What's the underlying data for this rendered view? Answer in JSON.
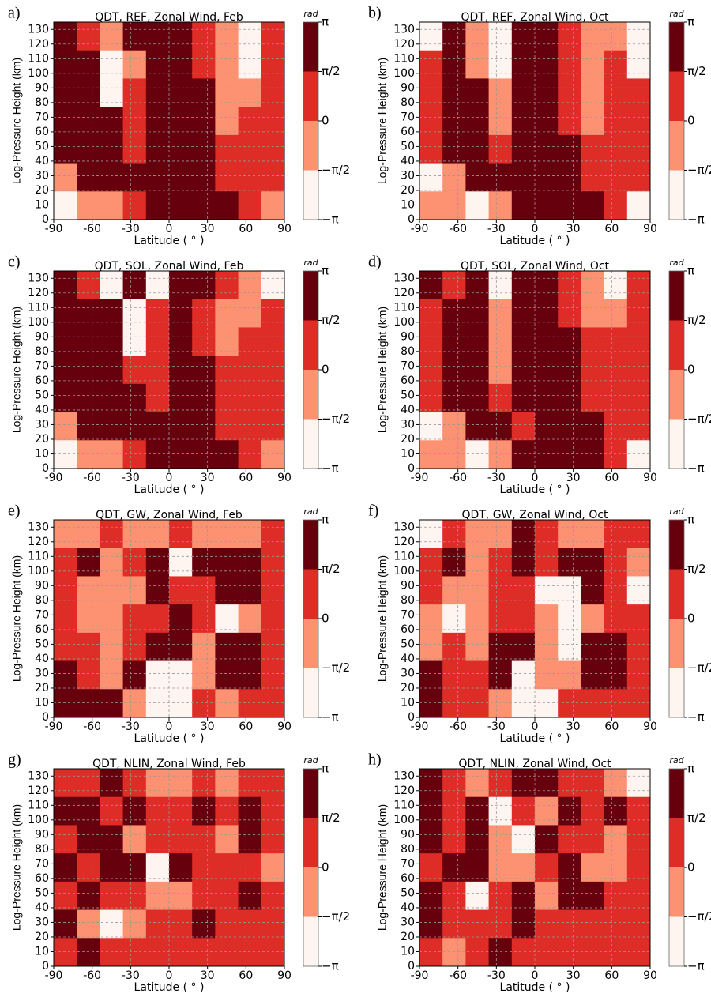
{
  "chart_data": [
    {
      "type": "heatmap",
      "panel_label": "a)",
      "title": "QDT, REF, Zonal Wind, Feb",
      "xlabel": "Latitude ( ° )",
      "ylabel": "Log-Pressure Height (km)",
      "xlim": [
        -90,
        90
      ],
      "ylim": [
        0,
        135
      ],
      "xticks": [
        -90,
        -60,
        -30,
        0,
        30,
        60,
        90
      ],
      "yticks": [
        0,
        10,
        20,
        30,
        40,
        50,
        60,
        70,
        80,
        90,
        100,
        110,
        120,
        130
      ],
      "grid": true,
      "z": [
        [
          2.4,
          0.8,
          -0.8,
          2.4,
          2.4,
          2.4,
          0.8,
          -0.8,
          -2.4,
          0.8
        ],
        [
          2.4,
          2.4,
          -2.4,
          -0.8,
          2.4,
          2.4,
          0.8,
          -0.8,
          -2.4,
          0.8
        ],
        [
          2.4,
          2.4,
          -2.4,
          0.8,
          2.4,
          2.4,
          2.4,
          -0.8,
          -0.8,
          0.8
        ],
        [
          2.4,
          2.4,
          2.4,
          0.8,
          2.4,
          2.4,
          2.4,
          -0.8,
          0.8,
          0.8
        ],
        [
          2.4,
          2.4,
          2.4,
          0.8,
          2.4,
          2.4,
          2.4,
          0.8,
          0.8,
          0.8
        ],
        [
          -0.8,
          2.4,
          2.4,
          2.4,
          2.4,
          2.4,
          2.4,
          0.8,
          0.8,
          0.8
        ],
        [
          -2.4,
          -0.8,
          -0.8,
          0.8,
          2.4,
          2.4,
          2.4,
          2.4,
          0.8,
          -0.8
        ]
      ],
      "colorbar": {
        "label": "rad",
        "lim": [
          -3.14159,
          3.14159
        ],
        "ticks": [
          {
            "value": -3.14159,
            "label": "−π"
          },
          {
            "value": -1.5708,
            "label": "−π/2"
          },
          0,
          {
            "value": 1.5708,
            "label": "π/2"
          },
          {
            "value": 3.14159,
            "label": "π"
          }
        ],
        "colors": [
          "#fff5f0",
          "#fc9272",
          "#de2d26",
          "#67000d"
        ]
      }
    },
    {
      "type": "heatmap",
      "panel_label": "b)",
      "title": "QDT, REF, Zonal Wind, Oct",
      "xlabel": "Latitude ( ° )",
      "ylabel": "Log-Pressure Height (km)",
      "xlim": [
        -90,
        90
      ],
      "ylim": [
        0,
        135
      ],
      "xticks": [
        -90,
        -60,
        -30,
        0,
        30,
        60,
        90
      ],
      "yticks": [
        0,
        10,
        20,
        30,
        40,
        50,
        60,
        70,
        80,
        90,
        100,
        110,
        120,
        130
      ],
      "grid": true,
      "z": [
        [
          -2.4,
          2.4,
          -0.8,
          -2.4,
          2.4,
          2.4,
          0.8,
          -0.8,
          -0.8,
          -2.4
        ],
        [
          0.8,
          2.4,
          -0.8,
          -2.4,
          2.4,
          2.4,
          0.8,
          -0.8,
          0.8,
          -2.4
        ],
        [
          0.8,
          2.4,
          2.4,
          -0.8,
          2.4,
          2.4,
          0.8,
          -0.8,
          0.8,
          0.8
        ],
        [
          0.8,
          2.4,
          2.4,
          -0.8,
          2.4,
          2.4,
          0.8,
          -0.8,
          0.8,
          0.8
        ],
        [
          0.8,
          2.4,
          2.4,
          0.8,
          2.4,
          2.4,
          2.4,
          0.8,
          0.8,
          0.8
        ],
        [
          -2.4,
          -0.8,
          2.4,
          2.4,
          2.4,
          2.4,
          2.4,
          0.8,
          0.8,
          0.8
        ],
        [
          -0.8,
          -0.8,
          -2.4,
          -0.8,
          2.4,
          2.4,
          2.4,
          2.4,
          0.8,
          -2.4
        ]
      ],
      "colorbar": {
        "label": "rad",
        "lim": [
          -3.14159,
          3.14159
        ],
        "ticks": [
          {
            "value": -3.14159,
            "label": "−π"
          },
          {
            "value": -1.5708,
            "label": "−π/2"
          },
          0,
          {
            "value": 1.5708,
            "label": "π/2"
          },
          {
            "value": 3.14159,
            "label": "π"
          }
        ],
        "colors": [
          "#fff5f0",
          "#fc9272",
          "#de2d26",
          "#67000d"
        ]
      }
    },
    {
      "type": "heatmap",
      "panel_label": "c)",
      "title": "QDT, SOL, Zonal Wind, Feb",
      "xlabel": "Latitude ( ° )",
      "ylabel": "Log-Pressure Height (km)",
      "xlim": [
        -90,
        90
      ],
      "ylim": [
        0,
        135
      ],
      "xticks": [
        -90,
        -60,
        -30,
        0,
        30,
        60,
        90
      ],
      "yticks": [
        0,
        10,
        20,
        30,
        40,
        50,
        60,
        70,
        80,
        90,
        100,
        110,
        120,
        130
      ],
      "grid": true,
      "z": [
        [
          2.4,
          0.8,
          -2.4,
          2.4,
          -2.4,
          2.4,
          2.4,
          0.8,
          -0.8,
          -2.4
        ],
        [
          2.4,
          2.4,
          2.4,
          -2.4,
          0.8,
          2.4,
          0.8,
          -0.8,
          -0.8,
          0.8
        ],
        [
          2.4,
          2.4,
          2.4,
          -2.4,
          0.8,
          2.4,
          0.8,
          -0.8,
          0.8,
          0.8
        ],
        [
          2.4,
          2.4,
          2.4,
          0.8,
          0.8,
          2.4,
          2.4,
          0.8,
          0.8,
          0.8
        ],
        [
          2.4,
          2.4,
          2.4,
          2.4,
          0.8,
          2.4,
          2.4,
          0.8,
          0.8,
          0.8
        ],
        [
          -0.8,
          2.4,
          2.4,
          2.4,
          2.4,
          2.4,
          2.4,
          0.8,
          0.8,
          0.8
        ],
        [
          -2.4,
          -0.8,
          -0.8,
          0.8,
          2.4,
          2.4,
          2.4,
          2.4,
          0.8,
          -0.8
        ]
      ],
      "colorbar": {
        "label": "rad",
        "lim": [
          -3.14159,
          3.14159
        ],
        "ticks": [
          {
            "value": -3.14159,
            "label": "−π"
          },
          {
            "value": -1.5708,
            "label": "−π/2"
          },
          0,
          {
            "value": 1.5708,
            "label": "π/2"
          },
          {
            "value": 3.14159,
            "label": "π"
          }
        ],
        "colors": [
          "#fff5f0",
          "#fc9272",
          "#de2d26",
          "#67000d"
        ]
      }
    },
    {
      "type": "heatmap",
      "panel_label": "d)",
      "title": "QDT, SOL, Zonal Wind, Oct",
      "xlabel": "Latitude ( ° )",
      "ylabel": "Log-Pressure Height (km)",
      "xlim": [
        -90,
        90
      ],
      "ylim": [
        0,
        135
      ],
      "xticks": [
        -90,
        -60,
        -30,
        0,
        30,
        60,
        90
      ],
      "yticks": [
        0,
        10,
        20,
        30,
        40,
        50,
        60,
        70,
        80,
        90,
        100,
        110,
        120,
        130
      ],
      "grid": true,
      "z": [
        [
          2.4,
          0.8,
          2.4,
          -2.4,
          2.4,
          2.4,
          0.8,
          -0.8,
          -2.4,
          0.8
        ],
        [
          0.8,
          2.4,
          2.4,
          -0.8,
          2.4,
          2.4,
          0.8,
          -0.8,
          -0.8,
          0.8
        ],
        [
          0.8,
          2.4,
          2.4,
          -0.8,
          2.4,
          2.4,
          2.4,
          0.8,
          0.8,
          0.8
        ],
        [
          0.8,
          2.4,
          2.4,
          -0.8,
          2.4,
          2.4,
          2.4,
          0.8,
          0.8,
          0.8
        ],
        [
          0.8,
          2.4,
          2.4,
          0.8,
          2.4,
          2.4,
          2.4,
          0.8,
          0.8,
          0.8
        ],
        [
          -2.4,
          -0.8,
          2.4,
          2.4,
          0.8,
          2.4,
          2.4,
          2.4,
          0.8,
          0.8
        ],
        [
          -0.8,
          -0.8,
          -2.4,
          -0.8,
          2.4,
          2.4,
          2.4,
          2.4,
          0.8,
          -2.4
        ]
      ],
      "colorbar": {
        "label": "rad",
        "lim": [
          -3.14159,
          3.14159
        ],
        "ticks": [
          {
            "value": -3.14159,
            "label": "−π"
          },
          {
            "value": -1.5708,
            "label": "−π/2"
          },
          0,
          {
            "value": 1.5708,
            "label": "π/2"
          },
          {
            "value": 3.14159,
            "label": "π"
          }
        ],
        "colors": [
          "#fff5f0",
          "#fc9272",
          "#de2d26",
          "#67000d"
        ]
      }
    },
    {
      "type": "heatmap",
      "panel_label": "e)",
      "title": "QDT, GW, Zonal Wind, Feb",
      "xlabel": "Latitude ( ° )",
      "ylabel": "Log-Pressure Height (km)",
      "xlim": [
        -90,
        90
      ],
      "ylim": [
        0,
        135
      ],
      "xticks": [
        -90,
        -60,
        -30,
        0,
        30,
        60,
        90
      ],
      "yticks": [
        0,
        10,
        20,
        30,
        40,
        50,
        60,
        70,
        80,
        90,
        100,
        110,
        120,
        130
      ],
      "grid": true,
      "z": [
        [
          -0.8,
          -0.8,
          0.8,
          -0.8,
          -0.8,
          0.8,
          -0.8,
          -0.8,
          -0.8,
          0.8
        ],
        [
          0.8,
          2.4,
          -0.8,
          0.8,
          2.4,
          -2.4,
          2.4,
          2.4,
          2.4,
          0.8
        ],
        [
          0.8,
          -0.8,
          -0.8,
          -0.8,
          2.4,
          0.8,
          0.8,
          2.4,
          2.4,
          0.8
        ],
        [
          0.8,
          -0.8,
          -0.8,
          0.8,
          0.8,
          2.4,
          0.8,
          -2.4,
          -0.8,
          0.8
        ],
        [
          0.8,
          0.8,
          -0.8,
          0.8,
          2.4,
          2.4,
          -0.8,
          2.4,
          2.4,
          0.8
        ],
        [
          2.4,
          0.8,
          -0.8,
          2.4,
          -2.4,
          -2.4,
          -0.8,
          2.4,
          2.4,
          0.8
        ],
        [
          2.4,
          2.4,
          2.4,
          -0.8,
          -2.4,
          -2.4,
          0.8,
          -0.8,
          0.8,
          0.8
        ]
      ],
      "colorbar": {
        "label": "rad",
        "lim": [
          -3.14159,
          3.14159
        ],
        "ticks": [
          {
            "value": -3.14159,
            "label": "−π"
          },
          {
            "value": -1.5708,
            "label": "−π/2"
          },
          0,
          {
            "value": 1.5708,
            "label": "π/2"
          },
          {
            "value": 3.14159,
            "label": "π"
          }
        ],
        "colors": [
          "#fff5f0",
          "#fc9272",
          "#de2d26",
          "#67000d"
        ]
      }
    },
    {
      "type": "heatmap",
      "panel_label": "f)",
      "title": "QDT, GW, Zonal Wind, Oct",
      "xlabel": "Latitude ( ° )",
      "ylabel": "Log-Pressure Height (km)",
      "xlim": [
        -90,
        90
      ],
      "ylim": [
        0,
        135
      ],
      "xticks": [
        -90,
        -60,
        -30,
        0,
        30,
        60,
        90
      ],
      "yticks": [
        0,
        10,
        20,
        30,
        40,
        50,
        60,
        70,
        80,
        90,
        100,
        110,
        120,
        130
      ],
      "grid": true,
      "z": [
        [
          -2.4,
          0.8,
          -0.8,
          -0.8,
          2.4,
          0.8,
          -0.8,
          -0.8,
          0.8,
          0.8
        ],
        [
          0.8,
          2.4,
          -0.8,
          0.8,
          2.4,
          0.8,
          2.4,
          2.4,
          0.8,
          -0.8
        ],
        [
          0.8,
          -0.8,
          -0.8,
          0.8,
          0.8,
          -2.4,
          -2.4,
          2.4,
          0.8,
          -2.4
        ],
        [
          -0.8,
          -2.4,
          -0.8,
          0.8,
          0.8,
          -0.8,
          -2.4,
          -0.8,
          0.8,
          0.8
        ],
        [
          -0.8,
          0.8,
          -0.8,
          2.4,
          2.4,
          -0.8,
          -2.4,
          2.4,
          2.4,
          0.8
        ],
        [
          2.4,
          0.8,
          0.8,
          2.4,
          -2.4,
          -0.8,
          -0.8,
          2.4,
          2.4,
          0.8
        ],
        [
          2.4,
          0.8,
          0.8,
          -0.8,
          -2.4,
          -2.4,
          0.8,
          0.8,
          0.8,
          0.8
        ]
      ],
      "colorbar": {
        "label": "rad",
        "lim": [
          -3.14159,
          3.14159
        ],
        "ticks": [
          {
            "value": -3.14159,
            "label": "−π"
          },
          {
            "value": -1.5708,
            "label": "−π/2"
          },
          0,
          {
            "value": 1.5708,
            "label": "π/2"
          },
          {
            "value": 3.14159,
            "label": "π"
          }
        ],
        "colors": [
          "#fff5f0",
          "#fc9272",
          "#de2d26",
          "#67000d"
        ]
      }
    },
    {
      "type": "heatmap",
      "panel_label": "g)",
      "title": "QDT, NLIN, Zonal Wind, Feb",
      "xlabel": "Latitude ( ° )",
      "ylabel": "Log-Pressure Height (km)",
      "xlim": [
        -90,
        90
      ],
      "ylim": [
        0,
        135
      ],
      "xticks": [
        -90,
        -60,
        -30,
        0,
        30,
        60,
        90
      ],
      "yticks": [
        0,
        10,
        20,
        30,
        40,
        50,
        60,
        70,
        80,
        90,
        100,
        110,
        120,
        130
      ],
      "grid": true,
      "z": [
        [
          0.8,
          0.8,
          2.4,
          0.8,
          -0.8,
          -0.8,
          0.8,
          -0.8,
          0.8,
          0.8
        ],
        [
          2.4,
          2.4,
          0.8,
          2.4,
          0.8,
          0.8,
          2.4,
          0.8,
          2.4,
          0.8
        ],
        [
          0.8,
          2.4,
          2.4,
          -0.8,
          0.8,
          0.8,
          0.8,
          -0.8,
          2.4,
          0.8
        ],
        [
          2.4,
          0.8,
          2.4,
          2.4,
          -2.4,
          2.4,
          0.8,
          0.8,
          0.8,
          -0.8
        ],
        [
          0.8,
          2.4,
          0.8,
          0.8,
          -0.8,
          -0.8,
          0.8,
          0.8,
          2.4,
          0.8
        ],
        [
          2.4,
          -0.8,
          -2.4,
          -0.8,
          0.8,
          0.8,
          2.4,
          0.8,
          0.8,
          0.8
        ],
        [
          0.8,
          2.4,
          0.8,
          0.8,
          0.8,
          0.8,
          0.8,
          0.8,
          0.8,
          0.8
        ]
      ],
      "colorbar": {
        "label": "rad",
        "lim": [
          -3.14159,
          3.14159
        ],
        "ticks": [
          {
            "value": -3.14159,
            "label": "−π"
          },
          {
            "value": -1.5708,
            "label": "−π/2"
          },
          0,
          {
            "value": 1.5708,
            "label": "π/2"
          },
          {
            "value": 3.14159,
            "label": "π"
          }
        ],
        "colors": [
          "#fff5f0",
          "#fc9272",
          "#de2d26",
          "#67000d"
        ]
      }
    },
    {
      "type": "heatmap",
      "panel_label": "h)",
      "title": "QDT, NLIN, Zonal Wind, Oct",
      "xlabel": "Latitude ( ° )",
      "ylabel": "Log-Pressure Height (km)",
      "xlim": [
        -90,
        90
      ],
      "ylim": [
        0,
        135
      ],
      "xticks": [
        -90,
        -60,
        -30,
        0,
        30,
        60,
        90
      ],
      "yticks": [
        0,
        10,
        20,
        30,
        40,
        50,
        60,
        70,
        80,
        90,
        100,
        110,
        120,
        130
      ],
      "grid": true,
      "z": [
        [
          2.4,
          0.8,
          -0.8,
          0.8,
          2.4,
          2.4,
          0.8,
          0.8,
          -0.8,
          -2.4
        ],
        [
          2.4,
          0.8,
          2.4,
          -2.4,
          0.8,
          -0.8,
          2.4,
          0.8,
          2.4,
          0.8
        ],
        [
          2.4,
          0.8,
          2.4,
          -0.8,
          -2.4,
          2.4,
          0.8,
          0.8,
          -0.8,
          0.8
        ],
        [
          0.8,
          2.4,
          2.4,
          -0.8,
          -0.8,
          0.8,
          2.4,
          -0.8,
          -0.8,
          0.8
        ],
        [
          2.4,
          0.8,
          -2.4,
          0.8,
          2.4,
          -0.8,
          2.4,
          2.4,
          0.8,
          0.8
        ],
        [
          2.4,
          0.8,
          0.8,
          0.8,
          2.4,
          0.8,
          0.8,
          0.8,
          0.8,
          0.8
        ],
        [
          0.8,
          -0.8,
          0.8,
          2.4,
          0.8,
          0.8,
          0.8,
          0.8,
          0.8,
          0.8
        ]
      ],
      "colorbar": {
        "label": "rad",
        "lim": [
          -3.14159,
          3.14159
        ],
        "ticks": [
          {
            "value": -3.14159,
            "label": "−π"
          },
          {
            "value": -1.5708,
            "label": "−π/2"
          },
          0,
          {
            "value": 1.5708,
            "label": "π/2"
          },
          {
            "value": 3.14159,
            "label": "π"
          }
        ],
        "colors": [
          "#fff5f0",
          "#fc9272",
          "#de2d26",
          "#67000d"
        ]
      }
    }
  ]
}
